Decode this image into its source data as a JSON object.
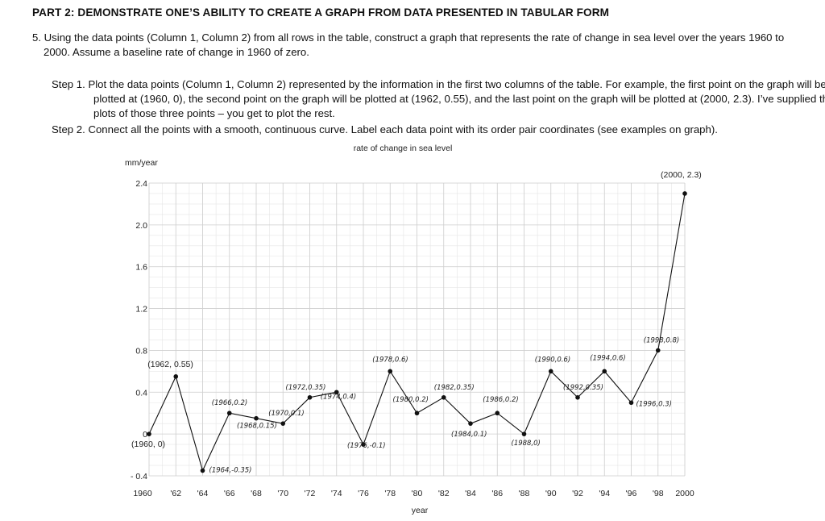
{
  "document": {
    "heading": "PART 2: DEMONSTRATE ONE’S ABILITY TO CREATE A GRAPH FROM DATA PRESENTED IN TABULAR FORM",
    "question": "5.  Using the data points (Column 1, Column 2) from all rows in the table, construct a graph that represents the rate of change in sea level over the years 1960 to 2000.  Assume a baseline rate of change in 1960 of zero.",
    "step1": "Step 1.  Plot the data points (Column 1, Column 2) represented by the information in the first two columns of the table.  For example, the first point on the graph will be plotted at (1960, 0), the second point on the graph will be plotted at (1962, 0.55), and the last point on the graph will be plotted at (2000, 2.3). I’ve supplied the plots of those three points – you get to plot the rest.",
    "step2": "Step 2.  Connect all the points with a smooth, continuous curve. Label each data point with its order pair coordinates (see examples on graph)."
  },
  "chart_data": {
    "type": "line",
    "title": "rate of change in sea level",
    "ylabel": "mm/year",
    "xlabel": "year",
    "xlim": [
      1960,
      2000
    ],
    "ylim": [
      -0.4,
      2.4
    ],
    "grid": true,
    "y_ticks": [
      2.4,
      2.0,
      1.6,
      1.2,
      0.8,
      0.4,
      0,
      -0.4
    ],
    "y_tick_labels": [
      "2.4",
      "2.0",
      "1.6",
      "1.2",
      "0.8",
      "0.4",
      "0",
      "- 0.4"
    ],
    "x_ticks": [
      1960,
      1962,
      1964,
      1966,
      1968,
      1970,
      1972,
      1974,
      1976,
      1978,
      1980,
      1982,
      1984,
      1986,
      1988,
      1990,
      1992,
      1994,
      1996,
      1998,
      2000
    ],
    "x_tick_labels": [
      "1960",
      "'62",
      "'64",
      "'66",
      "'68",
      "'70",
      "'72",
      "'74",
      "'76",
      "'78",
      "'80",
      "'82",
      "'84",
      "'86",
      "'88",
      "'90",
      "'92",
      "'94",
      "'96",
      "'98",
      "2000"
    ],
    "series": [
      {
        "name": "rate of change in sea level",
        "x": [
          1960,
          1962,
          1964,
          1966,
          1968,
          1970,
          1972,
          1974,
          1976,
          1978,
          1980,
          1982,
          1984,
          1986,
          1988,
          1990,
          1992,
          1994,
          1996,
          1998,
          2000
        ],
        "y": [
          0,
          0.55,
          -0.35,
          0.2,
          0.15,
          0.1,
          0.35,
          0.4,
          -0.1,
          0.6,
          0.2,
          0.35,
          0.1,
          0.2,
          0,
          0.6,
          0.35,
          0.6,
          0.3,
          0.8,
          2.3
        ]
      }
    ],
    "point_labels": [
      {
        "x": 1960,
        "y": 0,
        "text": "(1960, 0)",
        "style": "typed"
      },
      {
        "x": 1962,
        "y": 0.55,
        "text": "(1962, 0.55)",
        "style": "typed"
      },
      {
        "x": 1964,
        "y": -0.35,
        "text": "(1964,-0.35)",
        "style": "hand"
      },
      {
        "x": 1966,
        "y": 0.2,
        "text": "(1966,0.2)",
        "style": "hand"
      },
      {
        "x": 1968,
        "y": 0.15,
        "text": "(1968,0.15)",
        "style": "hand"
      },
      {
        "x": 1970,
        "y": 0.1,
        "text": "(1970,0.1)",
        "style": "hand"
      },
      {
        "x": 1972,
        "y": 0.35,
        "text": "(1972,0.35)",
        "style": "hand"
      },
      {
        "x": 1974,
        "y": 0.4,
        "text": "(1974,0.4)",
        "style": "hand"
      },
      {
        "x": 1976,
        "y": -0.1,
        "text": "(1976,-0.1)",
        "style": "hand"
      },
      {
        "x": 1978,
        "y": 0.6,
        "text": "(1978,0.6)",
        "style": "hand"
      },
      {
        "x": 1980,
        "y": 0.2,
        "text": "(1980,0.2)",
        "style": "hand"
      },
      {
        "x": 1982,
        "y": 0.35,
        "text": "(1982,0.35)",
        "style": "hand"
      },
      {
        "x": 1984,
        "y": 0.1,
        "text": "(1984,0.1)",
        "style": "hand"
      },
      {
        "x": 1986,
        "y": 0.2,
        "text": "(1986,0.2)",
        "style": "hand"
      },
      {
        "x": 1988,
        "y": 0,
        "text": "(1988,0)",
        "style": "hand"
      },
      {
        "x": 1990,
        "y": 0.6,
        "text": "(1990,0.6)",
        "style": "hand"
      },
      {
        "x": 1992,
        "y": 0.35,
        "text": "(1992,0.35)",
        "style": "hand"
      },
      {
        "x": 1994,
        "y": 0.6,
        "text": "(1994,0.6)",
        "style": "hand"
      },
      {
        "x": 1996,
        "y": 0.3,
        "text": "(1996,0.3)",
        "style": "hand"
      },
      {
        "x": 1998,
        "y": 0.8,
        "text": "(1998,0.8)",
        "style": "hand"
      },
      {
        "x": 2000,
        "y": 2.3,
        "text": "(2000, 2.3)",
        "style": "typed"
      }
    ]
  }
}
